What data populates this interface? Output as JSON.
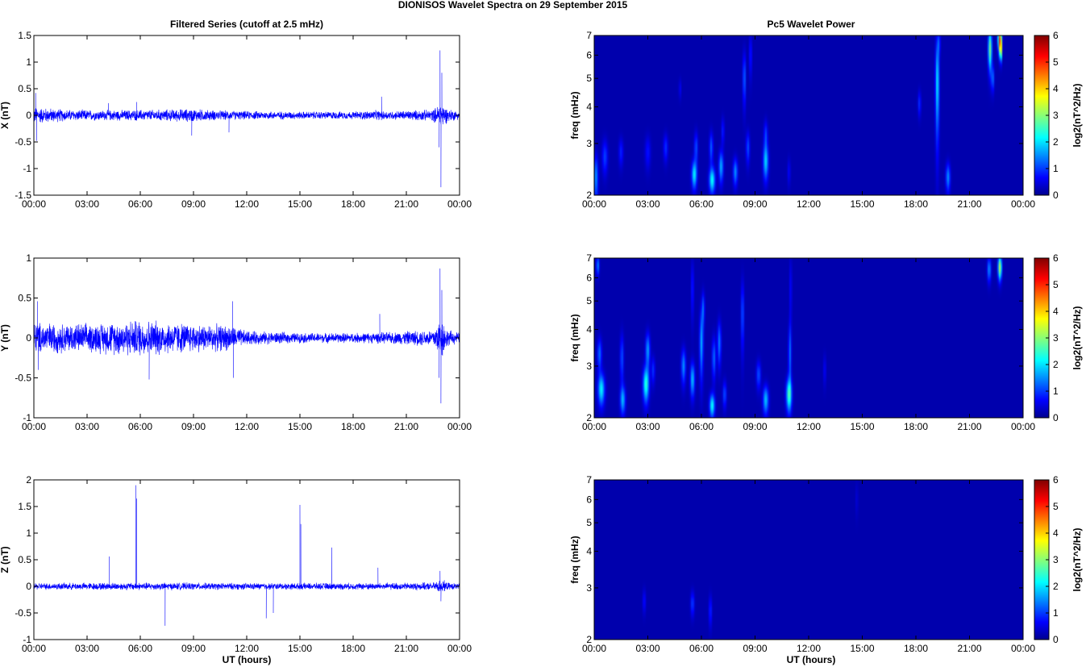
{
  "figure": {
    "title": "DIONISOS Wavelet Spectra on 29 September 2015",
    "left_title": "Filtered Series (cutoff at 2.5 mHz)",
    "right_title": "Pc5 Wavelet Power",
    "x_label": "UT (hours)",
    "colors": {
      "trace": "#0000ff",
      "background": "#000088"
    }
  },
  "chart_data": [
    {
      "type": "line",
      "name": "X",
      "ylabel": "X (nT)",
      "xlim": [
        0,
        24
      ],
      "ylim": [
        -1.5,
        1.5
      ],
      "xticks": [
        "00:00",
        "03:00",
        "06:00",
        "09:00",
        "12:00",
        "15:00",
        "18:00",
        "21:00",
        "00:00"
      ],
      "yticks": [
        "-1.5",
        "-1",
        "-0.5",
        "0",
        "0.5",
        "1",
        "1.5"
      ],
      "noise_envelope": [
        [
          0,
          0.18
        ],
        [
          2,
          0.12
        ],
        [
          4,
          0.11
        ],
        [
          7,
          0.12
        ],
        [
          9,
          0.14
        ],
        [
          10,
          0.11
        ],
        [
          12,
          0.09
        ],
        [
          15,
          0.08
        ],
        [
          18,
          0.08
        ],
        [
          19.5,
          0.11
        ],
        [
          20,
          0.09
        ],
        [
          22.5,
          0.12
        ],
        [
          23,
          0.28
        ],
        [
          23.3,
          0.15
        ],
        [
          24,
          0.08
        ]
      ],
      "spikes": [
        [
          0.1,
          0.42
        ],
        [
          0.15,
          -0.48
        ],
        [
          4.2,
          0.23
        ],
        [
          5.8,
          0.25
        ],
        [
          8.9,
          -0.38
        ],
        [
          11,
          -0.32
        ],
        [
          19.6,
          0.35
        ],
        [
          22.9,
          1.22
        ],
        [
          22.95,
          -1.35
        ],
        [
          23.0,
          0.8
        ],
        [
          22.85,
          -0.6
        ]
      ]
    },
    {
      "type": "line",
      "name": "Y",
      "ylabel": "Y (nT)",
      "xlim": [
        0,
        24
      ],
      "ylim": [
        -1,
        1
      ],
      "xticks": [
        "00:00",
        "03:00",
        "06:00",
        "09:00",
        "12:00",
        "15:00",
        "18:00",
        "21:00",
        "00:00"
      ],
      "yticks": [
        "-1",
        "-0.5",
        "0",
        "0.5",
        "1"
      ],
      "noise_envelope": [
        [
          0,
          0.22
        ],
        [
          3,
          0.2
        ],
        [
          6,
          0.26
        ],
        [
          9,
          0.2
        ],
        [
          11,
          0.18
        ],
        [
          12,
          0.1
        ],
        [
          15,
          0.07
        ],
        [
          18,
          0.07
        ],
        [
          20,
          0.08
        ],
        [
          22.5,
          0.12
        ],
        [
          23,
          0.3
        ],
        [
          23.3,
          0.12
        ],
        [
          24,
          0.07
        ]
      ],
      "spikes": [
        [
          0.2,
          0.46
        ],
        [
          0.25,
          -0.4
        ],
        [
          6.5,
          -0.52
        ],
        [
          11.2,
          0.46
        ],
        [
          11.25,
          -0.5
        ],
        [
          19.5,
          0.3
        ],
        [
          22.9,
          0.87
        ],
        [
          22.95,
          -0.82
        ],
        [
          23.0,
          0.6
        ],
        [
          22.85,
          -0.5
        ]
      ]
    },
    {
      "type": "line",
      "name": "Z",
      "ylabel": "Z (nT)",
      "xlim": [
        0,
        24
      ],
      "ylim": [
        -1,
        2
      ],
      "xticks": [
        "00:00",
        "03:00",
        "06:00",
        "09:00",
        "12:00",
        "15:00",
        "18:00",
        "21:00",
        "00:00"
      ],
      "yticks": [
        "-1",
        "-0.5",
        "0",
        "0.5",
        "1",
        "1.5",
        "2"
      ],
      "noise_envelope": [
        [
          0,
          0.07
        ],
        [
          6,
          0.08
        ],
        [
          12,
          0.07
        ],
        [
          18,
          0.07
        ],
        [
          22.5,
          0.08
        ],
        [
          23,
          0.15
        ],
        [
          23.3,
          0.08
        ],
        [
          24,
          0.06
        ]
      ],
      "spikes": [
        [
          4.25,
          0.56
        ],
        [
          5.75,
          1.9
        ],
        [
          5.8,
          1.65
        ],
        [
          7.4,
          -0.74
        ],
        [
          13.1,
          -0.6
        ],
        [
          13.5,
          -0.5
        ],
        [
          15.0,
          1.53
        ],
        [
          15.05,
          1.17
        ],
        [
          16.8,
          0.73
        ],
        [
          19.4,
          0.35
        ],
        [
          22.9,
          0.29
        ],
        [
          22.95,
          -0.28
        ]
      ]
    },
    {
      "type": "heatmap",
      "name": "X",
      "ylabel": "freq (mHz)",
      "xlim": [
        0,
        24
      ],
      "ylim": [
        2,
        7
      ],
      "yscale": "log",
      "xticks": [
        "00:00",
        "03:00",
        "06:00",
        "09:00",
        "12:00",
        "15:00",
        "18:00",
        "21:00",
        "00:00"
      ],
      "yticks": [
        "2",
        "3",
        "4",
        "5",
        "6",
        "7"
      ],
      "colorbar": {
        "label": "log2(nT^2/Hz)",
        "range": [
          0,
          6
        ],
        "ticks": [
          "0",
          "1",
          "2",
          "3",
          "4",
          "5",
          "6"
        ]
      },
      "blobs": [
        {
          "t": 0.1,
          "f": 2.3,
          "w": 0.12,
          "h": 0.4,
          "v": 1.4
        },
        {
          "t": 0.6,
          "f": 2.7,
          "w": 0.15,
          "h": 0.35,
          "v": 0.9
        },
        {
          "t": 1.5,
          "f": 2.8,
          "w": 0.12,
          "h": 0.3,
          "v": 0.7
        },
        {
          "t": 3.0,
          "f": 2.8,
          "w": 0.15,
          "h": 0.35,
          "v": 0.6
        },
        {
          "t": 4.0,
          "f": 2.9,
          "w": 0.12,
          "h": 0.3,
          "v": 0.8
        },
        {
          "t": 4.8,
          "f": 4.6,
          "w": 0.06,
          "h": 0.35,
          "v": 0.5
        },
        {
          "t": 5.6,
          "f": 2.35,
          "w": 0.14,
          "h": 0.25,
          "v": 2.0
        },
        {
          "t": 5.7,
          "f": 2.9,
          "w": 0.1,
          "h": 0.35,
          "v": 1.0
        },
        {
          "t": 6.6,
          "f": 2.25,
          "w": 0.16,
          "h": 0.22,
          "v": 2.1
        },
        {
          "t": 6.55,
          "f": 2.9,
          "w": 0.1,
          "h": 0.35,
          "v": 1.1
        },
        {
          "t": 7.1,
          "f": 2.5,
          "w": 0.12,
          "h": 0.3,
          "v": 1.6
        },
        {
          "t": 7.2,
          "f": 3.3,
          "w": 0.08,
          "h": 0.35,
          "v": 0.7
        },
        {
          "t": 7.9,
          "f": 2.4,
          "w": 0.12,
          "h": 0.25,
          "v": 1.4
        },
        {
          "t": 8.4,
          "f": 5.0,
          "w": 0.08,
          "h": 1.0,
          "v": 1.2
        },
        {
          "t": 8.6,
          "f": 2.9,
          "w": 0.1,
          "h": 0.35,
          "v": 1.0
        },
        {
          "t": 8.75,
          "f": 6.0,
          "w": 0.06,
          "h": 1.0,
          "v": 0.9
        },
        {
          "t": 9.6,
          "f": 2.6,
          "w": 0.14,
          "h": 0.35,
          "v": 1.8
        },
        {
          "t": 9.6,
          "f": 3.2,
          "w": 0.1,
          "h": 0.35,
          "v": 0.9
        },
        {
          "t": 10.9,
          "f": 2.4,
          "w": 0.08,
          "h": 0.25,
          "v": 0.5
        },
        {
          "t": 18.2,
          "f": 4.1,
          "w": 0.08,
          "h": 0.4,
          "v": 0.8
        },
        {
          "t": 19.2,
          "f": 4.8,
          "w": 0.1,
          "h": 1.8,
          "v": 2.0
        },
        {
          "t": 19.3,
          "f": 6.6,
          "w": 0.06,
          "h": 0.6,
          "v": 1.0
        },
        {
          "t": 19.8,
          "f": 2.3,
          "w": 0.12,
          "h": 0.25,
          "v": 1.4
        },
        {
          "t": 22.15,
          "f": 6.3,
          "w": 0.1,
          "h": 1.0,
          "v": 2.8
        },
        {
          "t": 22.3,
          "f": 5.0,
          "w": 0.08,
          "h": 0.5,
          "v": 1.2
        },
        {
          "t": 22.7,
          "f": 6.8,
          "w": 0.1,
          "h": 0.6,
          "v": 4.6
        },
        {
          "t": 22.75,
          "f": 6.2,
          "w": 0.06,
          "h": 0.5,
          "v": 3.2
        }
      ]
    },
    {
      "type": "heatmap",
      "name": "Y",
      "ylabel": "freq (mHz)",
      "xlim": [
        0,
        24
      ],
      "ylim": [
        2,
        7
      ],
      "yscale": "log",
      "xticks": [
        "00:00",
        "03:00",
        "06:00",
        "09:00",
        "12:00",
        "15:00",
        "18:00",
        "21:00",
        "00:00"
      ],
      "yticks": [
        "2",
        "3",
        "4",
        "5",
        "6",
        "7"
      ],
      "colorbar": {
        "label": "log2(nT^2/Hz)",
        "range": [
          0,
          6
        ],
        "ticks": [
          "0",
          "1",
          "2",
          "3",
          "4",
          "5",
          "6"
        ]
      },
      "blobs": [
        {
          "t": 0.2,
          "f": 6.6,
          "w": 0.08,
          "h": 0.5,
          "v": 1.4
        },
        {
          "t": 0.4,
          "f": 2.5,
          "w": 0.18,
          "h": 0.3,
          "v": 2.0
        },
        {
          "t": 0.3,
          "f": 3.3,
          "w": 0.12,
          "h": 0.4,
          "v": 1.2
        },
        {
          "t": 1.6,
          "f": 2.3,
          "w": 0.14,
          "h": 0.25,
          "v": 1.6
        },
        {
          "t": 1.55,
          "f": 3.2,
          "w": 0.1,
          "h": 0.6,
          "v": 1.0
        },
        {
          "t": 2.9,
          "f": 2.6,
          "w": 0.16,
          "h": 0.35,
          "v": 2.3
        },
        {
          "t": 3.0,
          "f": 3.4,
          "w": 0.12,
          "h": 0.45,
          "v": 1.5
        },
        {
          "t": 3.3,
          "f": 2.9,
          "w": 0.1,
          "h": 0.3,
          "v": 0.8
        },
        {
          "t": 5.0,
          "f": 3.0,
          "w": 0.12,
          "h": 0.4,
          "v": 1.4
        },
        {
          "t": 5.5,
          "f": 2.7,
          "w": 0.12,
          "h": 0.35,
          "v": 1.7
        },
        {
          "t": 5.5,
          "f": 5.5,
          "w": 0.06,
          "h": 1.2,
          "v": 0.9
        },
        {
          "t": 6.0,
          "f": 3.6,
          "w": 0.1,
          "h": 0.9,
          "v": 1.6
        },
        {
          "t": 6.1,
          "f": 4.7,
          "w": 0.08,
          "h": 0.6,
          "v": 1.1
        },
        {
          "t": 6.6,
          "f": 2.2,
          "w": 0.14,
          "h": 0.2,
          "v": 2.1
        },
        {
          "t": 6.7,
          "f": 3.2,
          "w": 0.1,
          "h": 0.5,
          "v": 1.2
        },
        {
          "t": 7.0,
          "f": 3.6,
          "w": 0.1,
          "h": 0.6,
          "v": 1.3
        },
        {
          "t": 7.3,
          "f": 2.4,
          "w": 0.1,
          "h": 0.25,
          "v": 1.0
        },
        {
          "t": 8.3,
          "f": 4.5,
          "w": 0.08,
          "h": 1.2,
          "v": 1.1
        },
        {
          "t": 9.2,
          "f": 2.8,
          "w": 0.12,
          "h": 0.3,
          "v": 1.0
        },
        {
          "t": 9.6,
          "f": 2.3,
          "w": 0.15,
          "h": 0.25,
          "v": 1.7
        },
        {
          "t": 10.9,
          "f": 2.4,
          "w": 0.15,
          "h": 0.3,
          "v": 2.4
        },
        {
          "t": 10.95,
          "f": 3.3,
          "w": 0.08,
          "h": 0.8,
          "v": 1.2
        },
        {
          "t": 11.0,
          "f": 5.5,
          "w": 0.05,
          "h": 1.4,
          "v": 0.8
        },
        {
          "t": 12.9,
          "f": 2.9,
          "w": 0.06,
          "h": 0.35,
          "v": 0.6
        },
        {
          "t": 22.1,
          "f": 6.4,
          "w": 0.1,
          "h": 0.6,
          "v": 1.4
        },
        {
          "t": 22.7,
          "f": 6.5,
          "w": 0.1,
          "h": 0.6,
          "v": 3.2
        }
      ]
    },
    {
      "type": "heatmap",
      "name": "Z",
      "ylabel": "freq (mHz)",
      "xlim": [
        0,
        24
      ],
      "ylim": [
        2,
        7
      ],
      "yscale": "log",
      "xticks": [
        "00:00",
        "03:00",
        "06:00",
        "09:00",
        "12:00",
        "15:00",
        "18:00",
        "21:00",
        "00:00"
      ],
      "yticks": [
        "2",
        "3",
        "4",
        "5",
        "6",
        "7"
      ],
      "colorbar": {
        "label": "log2(nT^2/Hz)",
        "range": [
          0,
          6
        ],
        "ticks": [
          "0",
          "1",
          "2",
          "3",
          "4",
          "5",
          "6"
        ]
      },
      "blobs": [
        {
          "t": 2.8,
          "f": 2.7,
          "w": 0.08,
          "h": 0.25,
          "v": 0.6
        },
        {
          "t": 5.5,
          "f": 2.65,
          "w": 0.1,
          "h": 0.25,
          "v": 0.9
        },
        {
          "t": 6.5,
          "f": 2.5,
          "w": 0.08,
          "h": 0.3,
          "v": 0.8
        },
        {
          "t": 14.7,
          "f": 6.0,
          "w": 0.05,
          "h": 0.8,
          "v": 0.4
        }
      ]
    }
  ]
}
